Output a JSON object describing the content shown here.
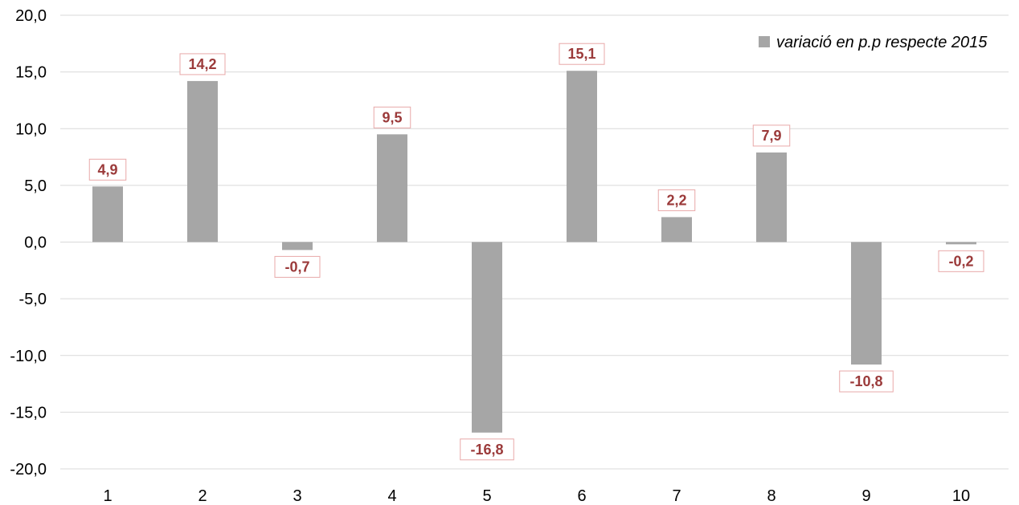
{
  "chart_data": {
    "type": "bar",
    "categories": [
      "1",
      "2",
      "3",
      "4",
      "5",
      "6",
      "7",
      "8",
      "9",
      "10"
    ],
    "series": [
      {
        "name": "variació en p.p respecte 2015",
        "values": [
          4.9,
          14.2,
          -0.7,
          9.5,
          -16.8,
          15.1,
          2.2,
          7.9,
          -10.8,
          -0.2
        ],
        "labels": [
          "4,9",
          "14,2",
          "-0,7",
          "9,5",
          "-16,8",
          "15,1",
          "2,2",
          "7,9",
          "-10,8",
          "-0,2"
        ]
      }
    ],
    "ylim": [
      -20,
      20
    ],
    "yticks": [
      20,
      15,
      10,
      5,
      0,
      -5,
      -10,
      -15,
      -20
    ],
    "ytick_labels": [
      "20,0",
      "15,0",
      "10,0",
      "5,0",
      "0,0",
      "-5,0",
      "-10,0",
      "-15,0",
      "-20,0"
    ],
    "title": "",
    "xlabel": "",
    "ylabel": "",
    "grid": true,
    "legend_position": "top-right",
    "colors": {
      "bar": "#a6a6a6",
      "grid": "#d9d9d9",
      "label_text": "#9b3a3a",
      "label_border": "#e8a8a8"
    }
  }
}
